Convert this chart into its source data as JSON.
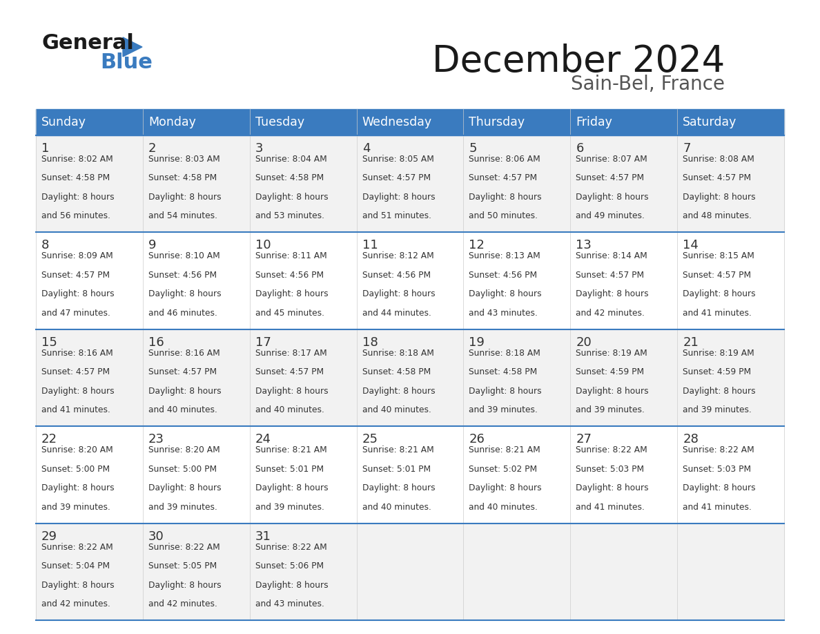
{
  "title": "December 2024",
  "subtitle": "Sain-Bel, France",
  "header_bg": "#3a7bbf",
  "header_text": "#ffffff",
  "row_bg_odd": "#f2f2f2",
  "row_bg_even": "#ffffff",
  "separator_color": "#3a7bbf",
  "text_color": "#333333",
  "days_of_week": [
    "Sunday",
    "Monday",
    "Tuesday",
    "Wednesday",
    "Thursday",
    "Friday",
    "Saturday"
  ],
  "calendar_data": [
    [
      {
        "day": 1,
        "sunrise": "8:02 AM",
        "sunset": "4:58 PM",
        "daylight_hours": 8,
        "daylight_minutes": 56
      },
      {
        "day": 2,
        "sunrise": "8:03 AM",
        "sunset": "4:58 PM",
        "daylight_hours": 8,
        "daylight_minutes": 54
      },
      {
        "day": 3,
        "sunrise": "8:04 AM",
        "sunset": "4:58 PM",
        "daylight_hours": 8,
        "daylight_minutes": 53
      },
      {
        "day": 4,
        "sunrise": "8:05 AM",
        "sunset": "4:57 PM",
        "daylight_hours": 8,
        "daylight_minutes": 51
      },
      {
        "day": 5,
        "sunrise": "8:06 AM",
        "sunset": "4:57 PM",
        "daylight_hours": 8,
        "daylight_minutes": 50
      },
      {
        "day": 6,
        "sunrise": "8:07 AM",
        "sunset": "4:57 PM",
        "daylight_hours": 8,
        "daylight_minutes": 49
      },
      {
        "day": 7,
        "sunrise": "8:08 AM",
        "sunset": "4:57 PM",
        "daylight_hours": 8,
        "daylight_minutes": 48
      }
    ],
    [
      {
        "day": 8,
        "sunrise": "8:09 AM",
        "sunset": "4:57 PM",
        "daylight_hours": 8,
        "daylight_minutes": 47
      },
      {
        "day": 9,
        "sunrise": "8:10 AM",
        "sunset": "4:56 PM",
        "daylight_hours": 8,
        "daylight_minutes": 46
      },
      {
        "day": 10,
        "sunrise": "8:11 AM",
        "sunset": "4:56 PM",
        "daylight_hours": 8,
        "daylight_minutes": 45
      },
      {
        "day": 11,
        "sunrise": "8:12 AM",
        "sunset": "4:56 PM",
        "daylight_hours": 8,
        "daylight_minutes": 44
      },
      {
        "day": 12,
        "sunrise": "8:13 AM",
        "sunset": "4:56 PM",
        "daylight_hours": 8,
        "daylight_minutes": 43
      },
      {
        "day": 13,
        "sunrise": "8:14 AM",
        "sunset": "4:57 PM",
        "daylight_hours": 8,
        "daylight_minutes": 42
      },
      {
        "day": 14,
        "sunrise": "8:15 AM",
        "sunset": "4:57 PM",
        "daylight_hours": 8,
        "daylight_minutes": 41
      }
    ],
    [
      {
        "day": 15,
        "sunrise": "8:16 AM",
        "sunset": "4:57 PM",
        "daylight_hours": 8,
        "daylight_minutes": 41
      },
      {
        "day": 16,
        "sunrise": "8:16 AM",
        "sunset": "4:57 PM",
        "daylight_hours": 8,
        "daylight_minutes": 40
      },
      {
        "day": 17,
        "sunrise": "8:17 AM",
        "sunset": "4:57 PM",
        "daylight_hours": 8,
        "daylight_minutes": 40
      },
      {
        "day": 18,
        "sunrise": "8:18 AM",
        "sunset": "4:58 PM",
        "daylight_hours": 8,
        "daylight_minutes": 40
      },
      {
        "day": 19,
        "sunrise": "8:18 AM",
        "sunset": "4:58 PM",
        "daylight_hours": 8,
        "daylight_minutes": 39
      },
      {
        "day": 20,
        "sunrise": "8:19 AM",
        "sunset": "4:59 PM",
        "daylight_hours": 8,
        "daylight_minutes": 39
      },
      {
        "day": 21,
        "sunrise": "8:19 AM",
        "sunset": "4:59 PM",
        "daylight_hours": 8,
        "daylight_minutes": 39
      }
    ],
    [
      {
        "day": 22,
        "sunrise": "8:20 AM",
        "sunset": "5:00 PM",
        "daylight_hours": 8,
        "daylight_minutes": 39
      },
      {
        "day": 23,
        "sunrise": "8:20 AM",
        "sunset": "5:00 PM",
        "daylight_hours": 8,
        "daylight_minutes": 39
      },
      {
        "day": 24,
        "sunrise": "8:21 AM",
        "sunset": "5:01 PM",
        "daylight_hours": 8,
        "daylight_minutes": 39
      },
      {
        "day": 25,
        "sunrise": "8:21 AM",
        "sunset": "5:01 PM",
        "daylight_hours": 8,
        "daylight_minutes": 40
      },
      {
        "day": 26,
        "sunrise": "8:21 AM",
        "sunset": "5:02 PM",
        "daylight_hours": 8,
        "daylight_minutes": 40
      },
      {
        "day": 27,
        "sunrise": "8:22 AM",
        "sunset": "5:03 PM",
        "daylight_hours": 8,
        "daylight_minutes": 41
      },
      {
        "day": 28,
        "sunrise": "8:22 AM",
        "sunset": "5:03 PM",
        "daylight_hours": 8,
        "daylight_minutes": 41
      }
    ],
    [
      {
        "day": 29,
        "sunrise": "8:22 AM",
        "sunset": "5:04 PM",
        "daylight_hours": 8,
        "daylight_minutes": 42
      },
      {
        "day": 30,
        "sunrise": "8:22 AM",
        "sunset": "5:05 PM",
        "daylight_hours": 8,
        "daylight_minutes": 42
      },
      {
        "day": 31,
        "sunrise": "8:22 AM",
        "sunset": "5:06 PM",
        "daylight_hours": 8,
        "daylight_minutes": 43
      },
      null,
      null,
      null,
      null
    ]
  ],
  "logo_text_general": "General",
  "logo_text_blue": "Blue",
  "logo_color_general": "#1a1a1a",
  "logo_color_blue": "#3a7bbf",
  "logo_triangle_color": "#3a7bbf"
}
